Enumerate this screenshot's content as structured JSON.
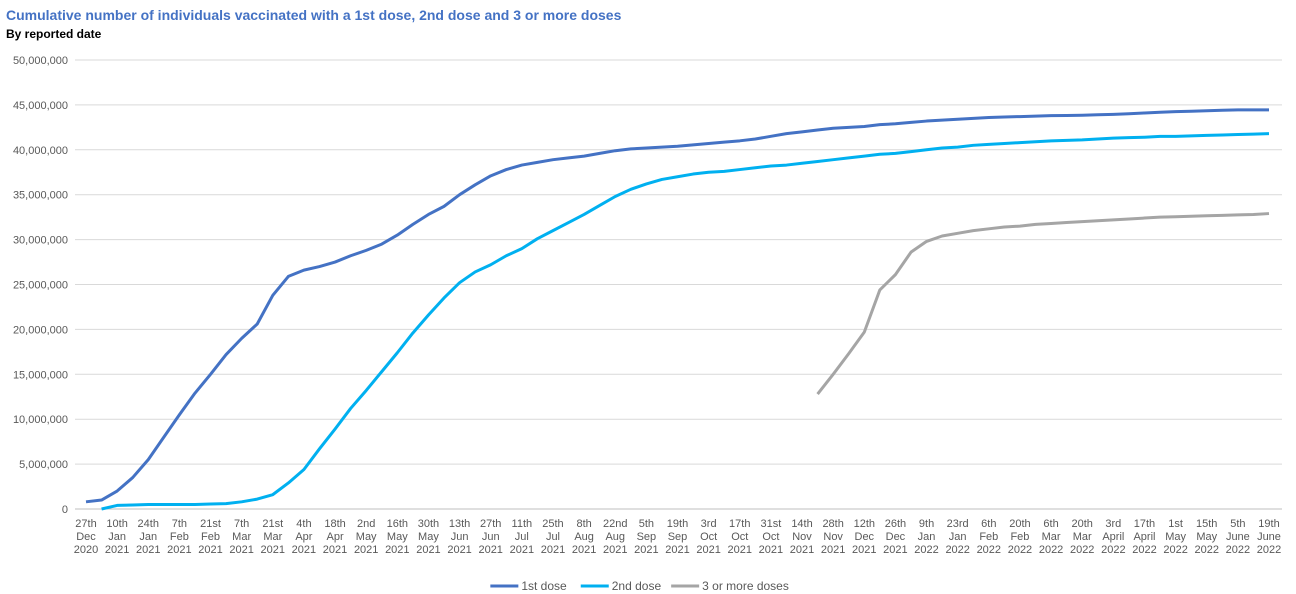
{
  "chart_data": {
    "type": "line",
    "title": "Cumulative number of individuals vaccinated with a 1st dose, 2nd dose and 3 or more doses",
    "subtitle": "By reported date",
    "categories": [
      "27th Dec 2020",
      null,
      "10th Jan 2021",
      null,
      "24th Jan 2021",
      null,
      "7th Feb 2021",
      null,
      "21st Feb 2021",
      null,
      "7th Mar 2021",
      null,
      "21st Mar 2021",
      null,
      "4th Apr 2021",
      null,
      "18th Apr 2021",
      null,
      "2nd May 2021",
      null,
      "16th May 2021",
      null,
      "30th May 2021",
      null,
      "13th Jun 2021",
      null,
      "27th Jun 2021",
      null,
      "11th Jul 2021",
      null,
      "25th Jul 2021",
      null,
      "8th Aug 2021",
      null,
      "22nd Aug 2021",
      null,
      "5th Sep 2021",
      null,
      "19th Sep 2021",
      null,
      "3rd Oct 2021",
      null,
      "17th Oct 2021",
      null,
      "31st Oct 2021",
      null,
      "14th Nov 2021",
      null,
      "28th Nov 2021",
      null,
      "12th Dec 2021",
      null,
      "26th Dec 2021",
      null,
      "9th Jan 2022",
      null,
      "23rd Jan 2022",
      null,
      "6th Feb 2022",
      null,
      "20th Feb 2022",
      null,
      "6th Mar 2022",
      null,
      "20th Mar 2022",
      null,
      "3rd April 2022",
      null,
      "17th April 2022",
      null,
      "1st May 2022",
      null,
      "15th May 2022",
      null,
      "5th June 2022",
      null,
      "19th June 2022"
    ],
    "series": [
      {
        "name": "1st dose",
        "color": "#4472c4",
        "values": [
          800000,
          1000000,
          2000000,
          3500000,
          5500000,
          8000000,
          10500000,
          12900000,
          15000000,
          17200000,
          19000000,
          20600000,
          23800000,
          25900000,
          26600000,
          27000000,
          27500000,
          28200000,
          28800000,
          29500000,
          30500000,
          31700000,
          32800000,
          33700000,
          35000000,
          36100000,
          37100000,
          37800000,
          38300000,
          38600000,
          38900000,
          39100000,
          39300000,
          39600000,
          39900000,
          40100000,
          40200000,
          40300000,
          40400000,
          40550000,
          40700000,
          40850000,
          41000000,
          41200000,
          41500000,
          41800000,
          42000000,
          42200000,
          42400000,
          42500000,
          42600000,
          42800000,
          42900000,
          43050000,
          43200000,
          43300000,
          43400000,
          43500000,
          43600000,
          43650000,
          43700000,
          43750000,
          43800000,
          43820000,
          43850000,
          43900000,
          43950000,
          44020000,
          44100000,
          44180000,
          44250000,
          44300000,
          44350000,
          44400000,
          44450000,
          44450000,
          44450000
        ]
      },
      {
        "name": "2nd dose",
        "color": "#00b0f0",
        "values": [
          null,
          0,
          400000,
          450000,
          500000,
          500000,
          500000,
          500000,
          550000,
          600000,
          800000,
          1100000,
          1600000,
          2900000,
          4400000,
          6700000,
          8900000,
          11200000,
          13200000,
          15300000,
          17400000,
          19600000,
          21600000,
          23500000,
          25200000,
          26400000,
          27200000,
          28200000,
          29000000,
          30100000,
          31000000,
          31900000,
          32800000,
          33800000,
          34800000,
          35600000,
          36200000,
          36700000,
          37000000,
          37300000,
          37500000,
          37600000,
          37800000,
          38000000,
          38200000,
          38300000,
          38500000,
          38700000,
          38900000,
          39100000,
          39300000,
          39500000,
          39600000,
          39800000,
          40000000,
          40200000,
          40300000,
          40500000,
          40600000,
          40700000,
          40800000,
          40900000,
          41000000,
          41050000,
          41100000,
          41200000,
          41300000,
          41350000,
          41400000,
          41500000,
          41500000,
          41550000,
          41600000,
          41650000,
          41700000,
          41750000,
          41800000
        ]
      },
      {
        "name": "3 or more doses",
        "color": "#a5a5a5",
        "values": [
          null,
          null,
          null,
          null,
          null,
          null,
          null,
          null,
          null,
          null,
          null,
          null,
          null,
          null,
          null,
          null,
          null,
          null,
          null,
          null,
          null,
          null,
          null,
          null,
          null,
          null,
          null,
          null,
          null,
          null,
          null,
          null,
          null,
          null,
          null,
          null,
          null,
          null,
          null,
          null,
          null,
          null,
          null,
          null,
          null,
          null,
          null,
          12800000,
          15000000,
          17300000,
          19700000,
          24400000,
          26100000,
          28600000,
          29800000,
          30400000,
          30700000,
          31000000,
          31200000,
          31400000,
          31500000,
          31700000,
          31800000,
          31900000,
          32000000,
          32100000,
          32200000,
          32300000,
          32400000,
          32500000,
          32550000,
          32600000,
          32650000,
          32700000,
          32750000,
          32800000,
          32900000
        ]
      }
    ],
    "ylim": [
      0,
      50000000
    ],
    "yticks": [
      0,
      {
        "value": 5000000,
        "label": "5,000,000"
      },
      {
        "value": 10000000,
        "label": "10,000,000"
      },
      {
        "value": 15000000,
        "label": "15,000,000"
      },
      {
        "value": 20000000,
        "label": "20,000,000"
      },
      {
        "value": 25000000,
        "label": "25,000,000"
      },
      {
        "value": 30000000,
        "label": "30,000,000"
      },
      {
        "value": 35000000,
        "label": "35,000,000"
      },
      {
        "value": 40000000,
        "label": "40,000,000"
      },
      {
        "value": 45000000,
        "label": "45,000,000"
      },
      {
        "value": 50000000,
        "label": "50,000,000"
      }
    ],
    "grid": true,
    "legend": "lower center"
  }
}
